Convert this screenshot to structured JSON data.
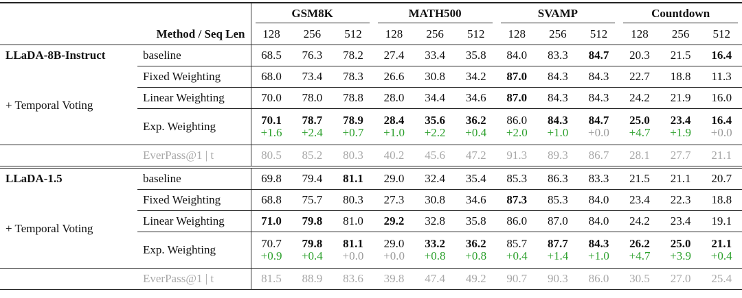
{
  "header": {
    "method_label": "Method / Seq Len",
    "groups": [
      "GSM8K",
      "MATH500",
      "SVAMP",
      "Countdown"
    ],
    "seq_lens": [
      "128",
      "256",
      "512",
      "128",
      "256",
      "512",
      "128",
      "256",
      "512",
      "128",
      "256",
      "512"
    ]
  },
  "delta_color": "#2ca02c",
  "zero_delta_color": "#9a9a9a",
  "muted_color": "#a8a8a8",
  "sections": [
    {
      "model": "LLaDA-8B-Instruct",
      "group_label": "+ Temporal Voting",
      "rows": [
        {
          "method": "baseline",
          "values": [
            "68.5",
            "76.3",
            "78.2",
            "27.4",
            "33.4",
            "35.8",
            "84.0",
            "83.3",
            "84.7",
            "20.3",
            "21.5",
            "16.4"
          ],
          "bold": [
            8,
            11
          ]
        },
        {
          "method": "Fixed Weighting",
          "values": [
            "68.0",
            "73.4",
            "78.3",
            "26.6",
            "30.8",
            "34.2",
            "87.0",
            "84.3",
            "84.3",
            "22.7",
            "18.8",
            "11.3"
          ],
          "bold": [
            6
          ]
        },
        {
          "method": "Linear Weighting",
          "values": [
            "70.0",
            "78.0",
            "78.8",
            "28.0",
            "34.4",
            "34.6",
            "87.0",
            "84.3",
            "84.3",
            "24.2",
            "21.9",
            "16.0"
          ],
          "bold": [
            6
          ]
        },
        {
          "method": "Exp. Weighting",
          "values": [
            "70.1",
            "78.7",
            "78.9",
            "28.4",
            "35.6",
            "36.2",
            "86.0",
            "84.3",
            "84.7",
            "25.0",
            "23.4",
            "16.4"
          ],
          "bold": [
            0,
            1,
            2,
            3,
            4,
            5,
            7,
            8,
            9,
            10,
            11
          ],
          "deltas": [
            "+1.6",
            "+2.4",
            "+0.7",
            "+1.0",
            "+2.2",
            "+0.4",
            "+2.0",
            "+1.0",
            "+0.0",
            "+4.7",
            "+1.9",
            "+0.0"
          ]
        }
      ],
      "everpass": {
        "label": "EverPass@1 | t",
        "values": [
          "80.5",
          "85.2",
          "80.3",
          "40.2",
          "45.6",
          "47.2",
          "91.3",
          "89.3",
          "86.7",
          "28.1",
          "27.7",
          "21.1"
        ]
      }
    },
    {
      "model": "LLaDA-1.5",
      "group_label": "+ Temporal Voting",
      "rows": [
        {
          "method": "baseline",
          "values": [
            "69.8",
            "79.4",
            "81.1",
            "29.0",
            "32.4",
            "35.4",
            "85.3",
            "86.3",
            "83.3",
            "21.5",
            "21.1",
            "20.7"
          ],
          "bold": [
            2
          ]
        },
        {
          "method": "Fixed Weighting",
          "values": [
            "68.8",
            "75.7",
            "80.3",
            "27.3",
            "30.8",
            "34.6",
            "87.3",
            "85.3",
            "84.0",
            "23.4",
            "22.3",
            "18.8"
          ],
          "bold": [
            6
          ]
        },
        {
          "method": "Linear Weighting",
          "values": [
            "71.0",
            "79.8",
            "81.0",
            "29.2",
            "32.8",
            "35.8",
            "86.0",
            "87.0",
            "84.0",
            "24.2",
            "23.4",
            "19.1"
          ],
          "bold": [
            0,
            1,
            3
          ]
        },
        {
          "method": "Exp. Weighting",
          "values": [
            "70.7",
            "79.8",
            "81.1",
            "29.0",
            "33.2",
            "36.2",
            "85.7",
            "87.7",
            "84.3",
            "26.2",
            "25.0",
            "21.1"
          ],
          "bold": [
            1,
            2,
            4,
            5,
            7,
            8,
            9,
            10,
            11
          ],
          "deltas": [
            "+0.9",
            "+0.4",
            "+0.0",
            "+0.0",
            "+0.8",
            "+0.8",
            "+0.4",
            "+1.4",
            "+1.0",
            "+4.7",
            "+3.9",
            "+0.4"
          ]
        }
      ],
      "everpass": {
        "label": "EverPass@1 | t",
        "values": [
          "81.5",
          "88.9",
          "83.6",
          "39.8",
          "47.4",
          "49.2",
          "90.7",
          "90.3",
          "86.0",
          "30.5",
          "27.0",
          "25.4"
        ]
      }
    }
  ]
}
